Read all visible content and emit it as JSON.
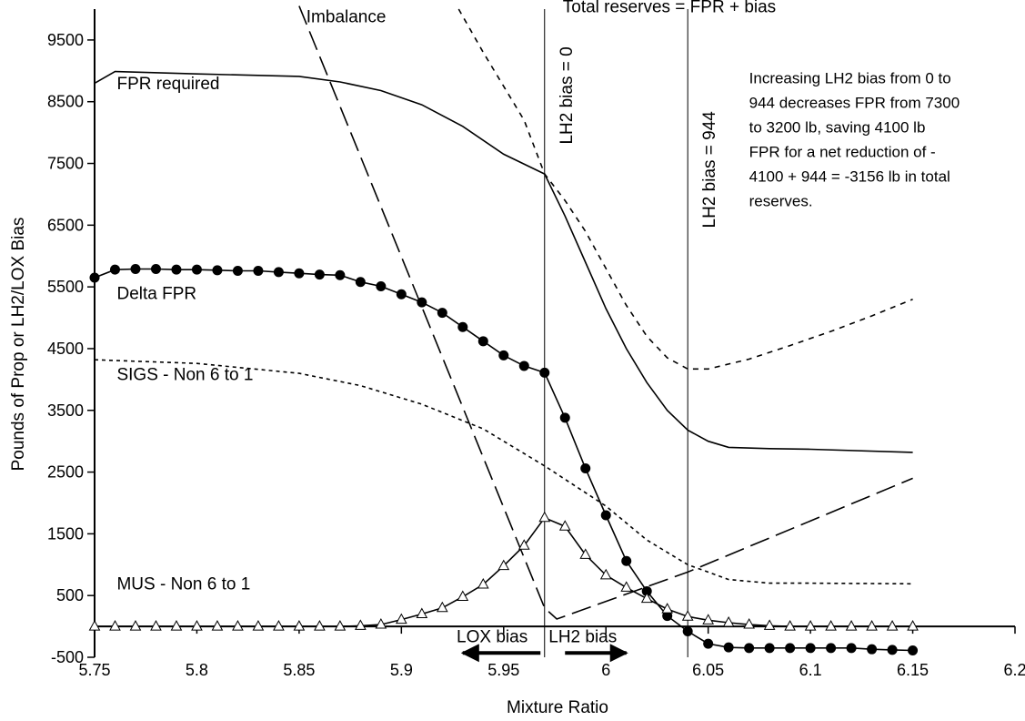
{
  "chart_data": {
    "type": "line",
    "xlabel": "Mixture Ratio",
    "ylabel": "Pounds of Prop or LH2/LOX Bias",
    "xlim": [
      5.75,
      6.2
    ],
    "ylim": [
      -500,
      10000
    ],
    "x_ticks": [
      "5.75",
      "5.8",
      "5.85",
      "5.9",
      "5.95",
      "6",
      "6.05",
      "6.1",
      "6.15",
      "6.2"
    ],
    "y_ticks": [
      "-500",
      "500",
      "1500",
      "2500",
      "3500",
      "4500",
      "5500",
      "6500",
      "7500",
      "8500",
      "9500"
    ],
    "grid": false,
    "legend": "none (series labeled inline)",
    "series": [
      {
        "name": "FPR required",
        "style": "solid",
        "label_pos": [
          5.752,
          8700
        ],
        "x": [
          5.75,
          5.76,
          5.8,
          5.85,
          5.87,
          5.89,
          5.91,
          5.93,
          5.95,
          5.97,
          5.98,
          5.99,
          6.0,
          6.01,
          6.02,
          6.03,
          6.04,
          6.05,
          6.06,
          6.08,
          6.1,
          6.15
        ],
        "y": [
          8800,
          8990,
          8950,
          8910,
          8820,
          8680,
          8450,
          8100,
          7650,
          7330,
          6650,
          5900,
          5150,
          4500,
          3950,
          3500,
          3180,
          3000,
          2900,
          2880,
          2870,
          2820
        ]
      },
      {
        "name": "Total reserves = FPR + bias",
        "style": "short-dash",
        "label_pos": [
          5.97,
          9950
        ],
        "x": [
          5.928,
          5.94,
          5.95,
          5.96,
          5.97,
          5.98,
          5.99,
          6.0,
          6.01,
          6.02,
          6.03,
          6.04,
          6.05,
          6.07,
          6.09,
          6.11,
          6.13,
          6.15
        ],
        "y": [
          10000,
          9300,
          8750,
          8200,
          7330,
          6900,
          6400,
          5800,
          5200,
          4700,
          4350,
          4170,
          4170,
          4330,
          4550,
          4780,
          5030,
          5300
        ]
      },
      {
        "name": "Imbalance",
        "style": "long-dash",
        "label_pos": [
          5.873,
          9960
        ],
        "x": [
          5.85,
          5.97,
          5.976,
          6.04,
          6.15
        ],
        "y": [
          10050,
          300,
          120,
          880,
          2400
        ]
      },
      {
        "name": "SIGS - Non 6 to 1",
        "style": "dotted",
        "label_pos": [
          5.752,
          3990
        ],
        "x": [
          5.75,
          5.8,
          5.85,
          5.88,
          5.91,
          5.94,
          5.97,
          6.0,
          6.02,
          6.04,
          6.06,
          6.08,
          6.1,
          6.15
        ],
        "y": [
          4320,
          4260,
          4100,
          3900,
          3600,
          3200,
          2600,
          1950,
          1400,
          1000,
          760,
          700,
          700,
          690
        ]
      },
      {
        "name": "Delta FPR",
        "style": "solid with filled circles",
        "label_pos": [
          5.752,
          5300
        ],
        "x": [
          5.75,
          5.76,
          5.77,
          5.78,
          5.79,
          5.8,
          5.81,
          5.82,
          5.83,
          5.84,
          5.85,
          5.86,
          5.87,
          5.88,
          5.89,
          5.9,
          5.91,
          5.92,
          5.93,
          5.94,
          5.95,
          5.96,
          5.97,
          5.98,
          5.99,
          6.0,
          6.01,
          6.02,
          6.03,
          6.04,
          6.05,
          6.06,
          6.07,
          6.08,
          6.09,
          6.1,
          6.11,
          6.12,
          6.13,
          6.14,
          6.15
        ],
        "y": [
          5650,
          5780,
          5790,
          5790,
          5780,
          5780,
          5770,
          5760,
          5760,
          5740,
          5720,
          5700,
          5690,
          5580,
          5510,
          5380,
          5250,
          5080,
          4850,
          4620,
          4390,
          4220,
          4110,
          3380,
          2560,
          1800,
          1060,
          570,
          170,
          -80,
          -280,
          -340,
          -350,
          -350,
          -350,
          -350,
          -350,
          -350,
          -370,
          -380,
          -390
        ]
      },
      {
        "name": "MUS - Non 6 to 1",
        "style": "solid with open triangles",
        "label_pos": [
          5.752,
          600
        ],
        "x": [
          5.75,
          5.76,
          5.77,
          5.78,
          5.79,
          5.8,
          5.81,
          5.82,
          5.83,
          5.84,
          5.85,
          5.86,
          5.87,
          5.88,
          5.89,
          5.9,
          5.91,
          5.92,
          5.93,
          5.94,
          5.95,
          5.96,
          5.97,
          5.98,
          5.99,
          6.0,
          6.01,
          6.02,
          6.03,
          6.04,
          6.05,
          6.06,
          6.07,
          6.08,
          6.09,
          6.1,
          6.11,
          6.12,
          6.13,
          6.14,
          6.15
        ],
        "y": [
          0,
          0,
          0,
          0,
          0,
          0,
          0,
          0,
          0,
          0,
          0,
          0,
          0,
          10,
          30,
          110,
          200,
          300,
          480,
          680,
          980,
          1310,
          1760,
          1620,
          1160,
          830,
          630,
          450,
          280,
          160,
          100,
          60,
          30,
          10,
          0,
          0,
          0,
          0,
          0,
          0,
          0
        ]
      }
    ],
    "reference_lines": [
      {
        "x": 5.97,
        "label": "LH2 bias = 0",
        "label_y": 8600
      },
      {
        "x": 6.04,
        "label": "LH2 bias = 944",
        "label_y": 7400
      }
    ],
    "annotations": [
      {
        "lines": [
          "Increasing LH2 bias from 0 to",
          "944 decreases FPR from 7300",
          "to 3200 lb, saving 4100 lb",
          "FPR for a net reduction of -",
          "4100 + 944 = -3156 lb in total",
          "reserves."
        ],
        "pos": [
          6.07,
          8800
        ]
      },
      {
        "text": "LOX bias",
        "pos": [
          5.927,
          -170
        ],
        "arrow_from": 5.968,
        "arrow_to": 5.93,
        "arrow_y": -430
      },
      {
        "text": "LH2  bias",
        "pos": [
          5.972,
          -170
        ],
        "arrow_from": 5.98,
        "arrow_to": 6.01,
        "arrow_y": -430
      }
    ]
  }
}
